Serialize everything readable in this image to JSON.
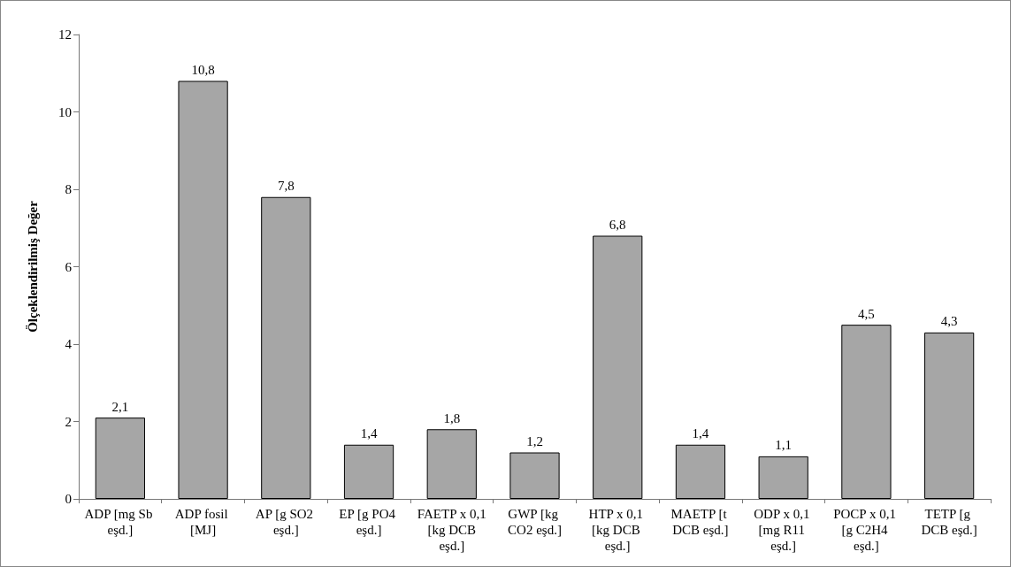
{
  "chart_data": {
    "type": "bar",
    "ylabel": "Ölçeklendirilmiş Değer",
    "categories": [
      "ADP [mg Sb eşd.]",
      "ADP fosil [MJ]",
      "AP [g SO2 eşd.]",
      "EP [g PO4 eşd.]",
      "FAETP x 0,1 [kg DCB eşd.]",
      "GWP [kg CO2 eşd.]",
      "HTP x 0,1 [kg DCB eşd.]",
      "MAETP [t DCB eşd.]",
      "ODP x 0,1 [mg R11 eşd.]",
      "POCP x 0,1 [g C2H4 eşd.]",
      "TETP [g DCB eşd.]"
    ],
    "values": [
      2.1,
      10.8,
      7.8,
      1.4,
      1.8,
      1.2,
      6.8,
      1.4,
      1.1,
      4.5,
      4.3
    ],
    "value_labels": [
      "2,1",
      "10,8",
      "7,8",
      "1,4",
      "1,8",
      "1,2",
      "6,8",
      "1,4",
      "1,1",
      "4,5",
      "4,3"
    ],
    "color": "#a6a6a6",
    "ylim": [
      0,
      12
    ],
    "yticks": [
      0,
      2,
      4,
      6,
      8,
      10,
      12
    ],
    "grid": false
  }
}
